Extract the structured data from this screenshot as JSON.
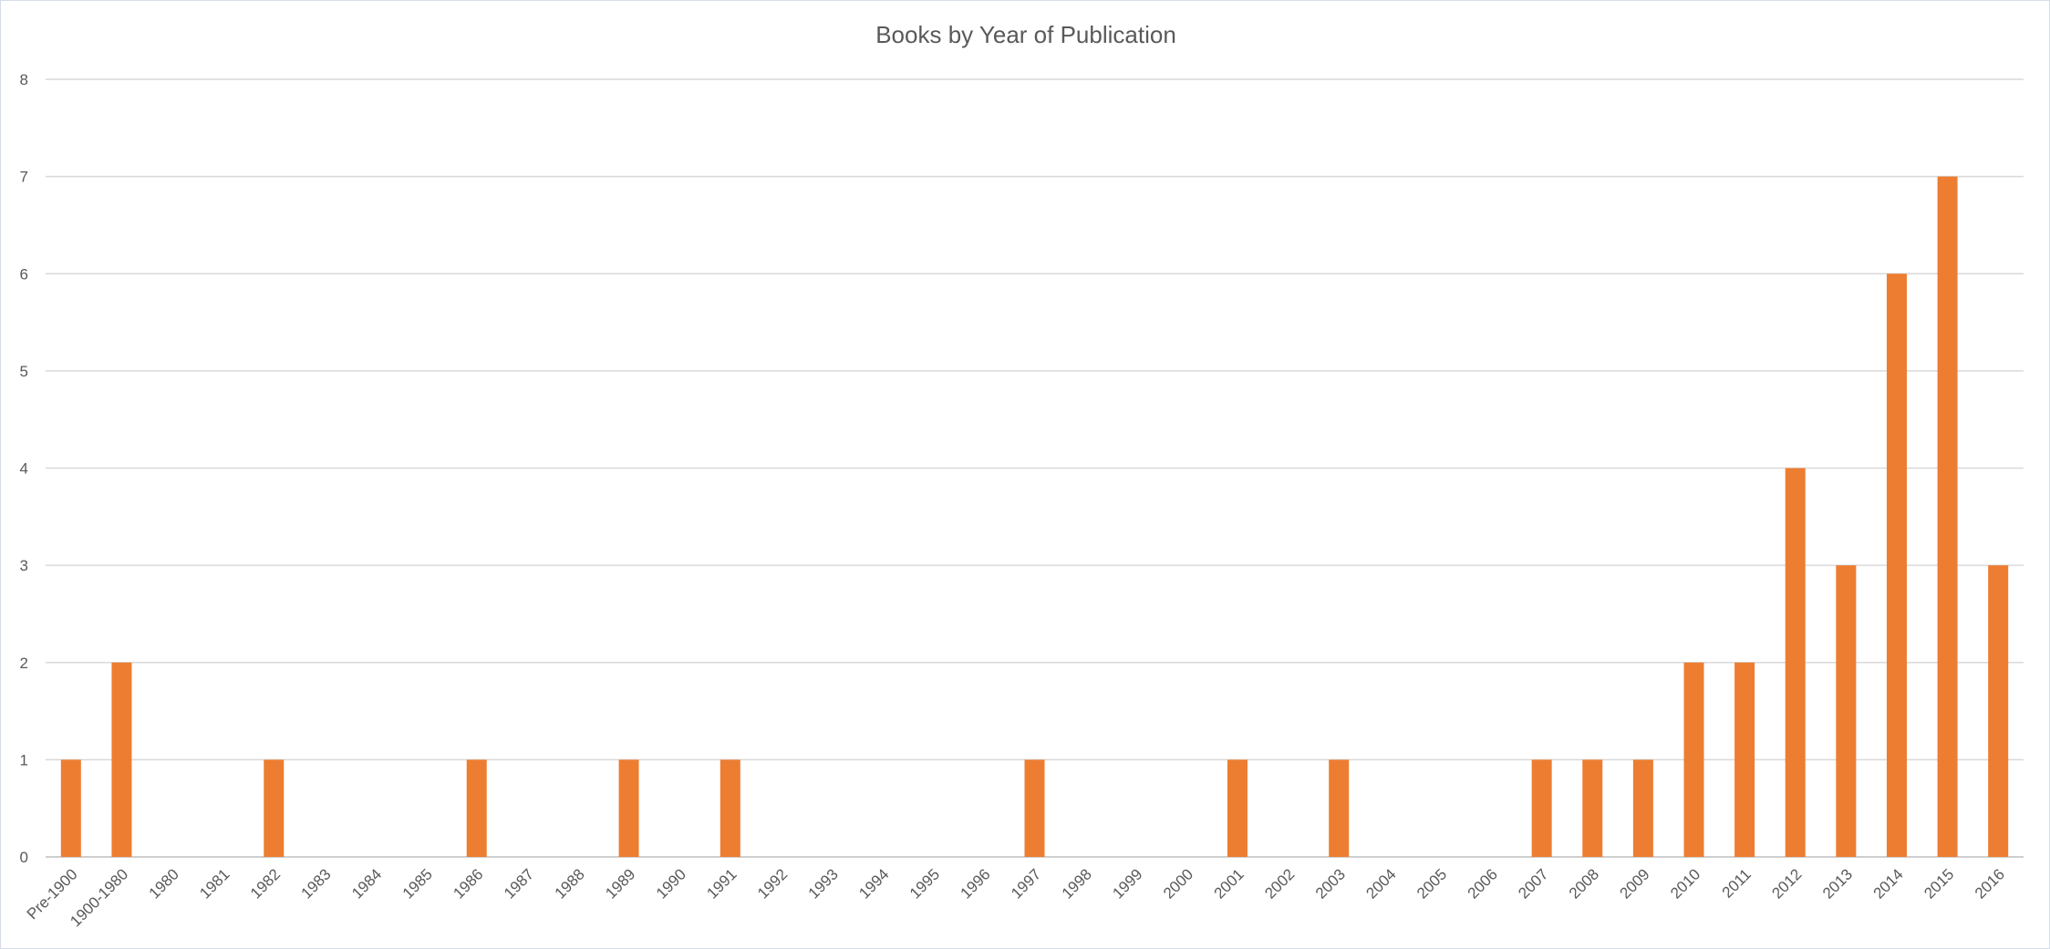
{
  "chart_data": {
    "type": "bar",
    "title": "Books by Year of Publication",
    "xlabel": "",
    "ylabel": "",
    "ylim": [
      0,
      8
    ],
    "yticks": [
      0,
      1,
      2,
      3,
      4,
      5,
      6,
      7,
      8
    ],
    "grid": true,
    "legend": "none",
    "bar_color": "#ED7D31",
    "categories": [
      "Pre-1900",
      "1900-1980",
      "1980",
      "1981",
      "1982",
      "1983",
      "1984",
      "1985",
      "1986",
      "1987",
      "1988",
      "1989",
      "1990",
      "1991",
      "1992",
      "1993",
      "1994",
      "1995",
      "1996",
      "1997",
      "1998",
      "1999",
      "2000",
      "2001",
      "2002",
      "2003",
      "2004",
      "2005",
      "2006",
      "2007",
      "2008",
      "2009",
      "2010",
      "2011",
      "2012",
      "2013",
      "2014",
      "2015",
      "2016"
    ],
    "values": [
      1,
      2,
      0,
      0,
      1,
      0,
      0,
      0,
      1,
      0,
      0,
      1,
      0,
      1,
      0,
      0,
      0,
      0,
      0,
      1,
      0,
      0,
      0,
      1,
      0,
      1,
      0,
      0,
      0,
      1,
      1,
      1,
      2,
      2,
      4,
      3,
      6,
      7,
      3
    ]
  }
}
